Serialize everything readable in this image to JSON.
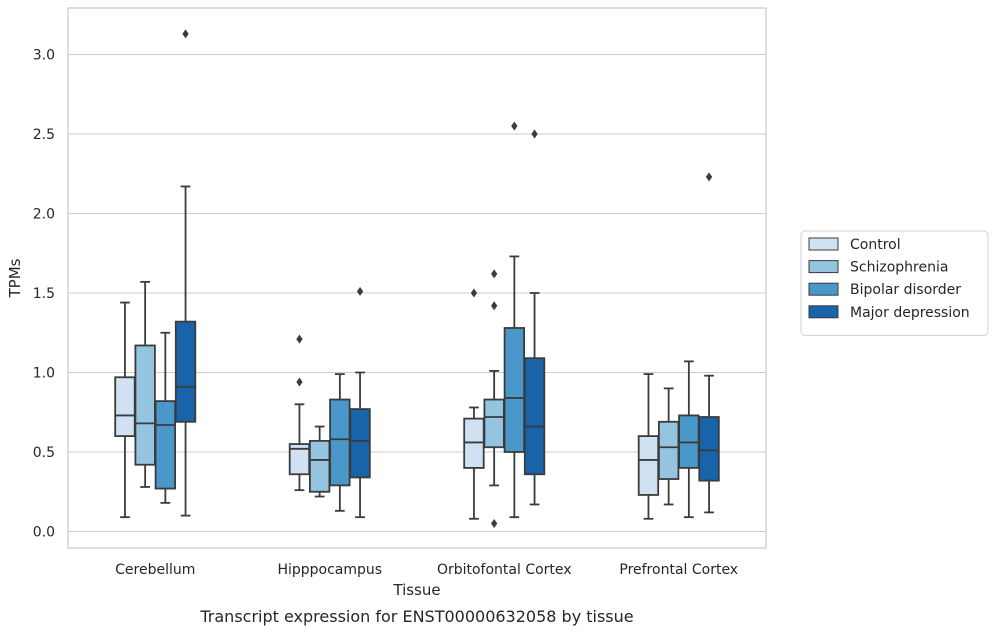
{
  "caption": "Transcript expression for ENST00000632058 by tissue",
  "chart_data": {
    "type": "box",
    "title": "",
    "xlabel": "Tissue",
    "ylabel": "TPMs",
    "ylim": [
      -0.1,
      3.3
    ],
    "yticks": [
      0.0,
      0.5,
      1.0,
      1.5,
      2.0,
      2.5,
      3.0
    ],
    "ytick_labels": [
      "0.0",
      "0.5",
      "1.0",
      "1.5",
      "2.0",
      "2.5",
      "3.0"
    ],
    "grid": "horizontal",
    "legend_position": "right",
    "categories": [
      "Cerebellum",
      "Hipppocampus",
      "Orbitofontal Cortex",
      "Prefrontal Cortex"
    ],
    "series": [
      {
        "name": "Control",
        "color": "#d0e1f2",
        "boxes": [
          {
            "whislo": 0.09,
            "q1": 0.6,
            "med": 0.73,
            "q3": 0.97,
            "whishi": 1.44,
            "fliers": []
          },
          {
            "whislo": 0.26,
            "q1": 0.36,
            "med": 0.52,
            "q3": 0.55,
            "whishi": 0.8,
            "fliers": [
              0.94,
              1.21
            ]
          },
          {
            "whislo": 0.08,
            "q1": 0.4,
            "med": 0.56,
            "q3": 0.71,
            "whishi": 0.78,
            "fliers": [
              1.5
            ]
          },
          {
            "whislo": 0.08,
            "q1": 0.23,
            "med": 0.45,
            "q3": 0.6,
            "whishi": 0.99,
            "fliers": []
          }
        ]
      },
      {
        "name": "Schizophrenia",
        "color": "#94c4df",
        "boxes": [
          {
            "whislo": 0.28,
            "q1": 0.42,
            "med": 0.68,
            "q3": 1.17,
            "whishi": 1.57,
            "fliers": []
          },
          {
            "whislo": 0.22,
            "q1": 0.25,
            "med": 0.45,
            "q3": 0.57,
            "whishi": 0.66,
            "fliers": []
          },
          {
            "whislo": 0.29,
            "q1": 0.53,
            "med": 0.72,
            "q3": 0.83,
            "whishi": 1.01,
            "fliers": [
              0.05,
              1.42,
              1.62
            ]
          },
          {
            "whislo": 0.17,
            "q1": 0.33,
            "med": 0.53,
            "q3": 0.69,
            "whishi": 0.9,
            "fliers": []
          }
        ]
      },
      {
        "name": "Bipolar disorder",
        "color": "#4a98c9",
        "boxes": [
          {
            "whislo": 0.18,
            "q1": 0.27,
            "med": 0.67,
            "q3": 0.82,
            "whishi": 1.25,
            "fliers": []
          },
          {
            "whislo": 0.13,
            "q1": 0.29,
            "med": 0.58,
            "q3": 0.83,
            "whishi": 0.99,
            "fliers": []
          },
          {
            "whislo": 0.09,
            "q1": 0.5,
            "med": 0.84,
            "q3": 1.28,
            "whishi": 1.73,
            "fliers": [
              2.55
            ]
          },
          {
            "whislo": 0.09,
            "q1": 0.4,
            "med": 0.56,
            "q3": 0.73,
            "whishi": 1.07,
            "fliers": []
          }
        ]
      },
      {
        "name": "Major depression",
        "color": "#1764ab",
        "boxes": [
          {
            "whislo": 0.1,
            "q1": 0.69,
            "med": 0.91,
            "q3": 1.32,
            "whishi": 2.17,
            "fliers": [
              3.13
            ]
          },
          {
            "whislo": 0.09,
            "q1": 0.34,
            "med": 0.57,
            "q3": 0.77,
            "whishi": 1.0,
            "fliers": [
              1.51
            ]
          },
          {
            "whislo": 0.17,
            "q1": 0.36,
            "med": 0.66,
            "q3": 1.09,
            "whishi": 1.5,
            "fliers": [
              2.5
            ]
          },
          {
            "whislo": 0.12,
            "q1": 0.32,
            "med": 0.51,
            "q3": 0.72,
            "whishi": 0.98,
            "fliers": [
              2.23
            ]
          }
        ]
      }
    ]
  }
}
